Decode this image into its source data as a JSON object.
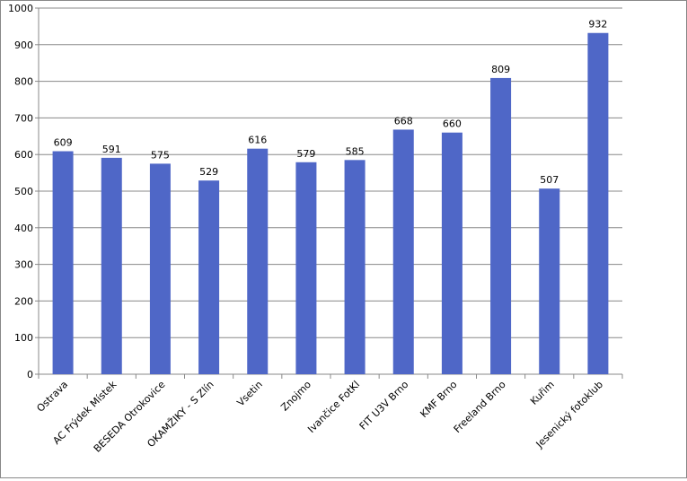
{
  "chart_data": {
    "type": "bar",
    "categories": [
      "Ostrava",
      "AC Frýdek Místek",
      "BESEDA Otrokovice",
      "OKAMŽIKY - S Zlín",
      "Vsetin",
      "Znojmo",
      "Ivančice FotKl",
      "FIT U3V Brno",
      "KMF Brno",
      "Freeland Brno",
      "Kuřim",
      "Jesenický fotoklub"
    ],
    "values": [
      609,
      591,
      575,
      529,
      616,
      579,
      585,
      668,
      660,
      809,
      507,
      932
    ],
    "title": "",
    "xlabel": "",
    "ylabel": "",
    "ylim": [
      0,
      1000
    ],
    "yticks": [
      0,
      100,
      200,
      300,
      400,
      500,
      600,
      700,
      800,
      900,
      1000
    ],
    "grid": true,
    "legend": "none",
    "data_labels": true,
    "bar_color": "#4F67C7",
    "grid_color": "#888888"
  }
}
